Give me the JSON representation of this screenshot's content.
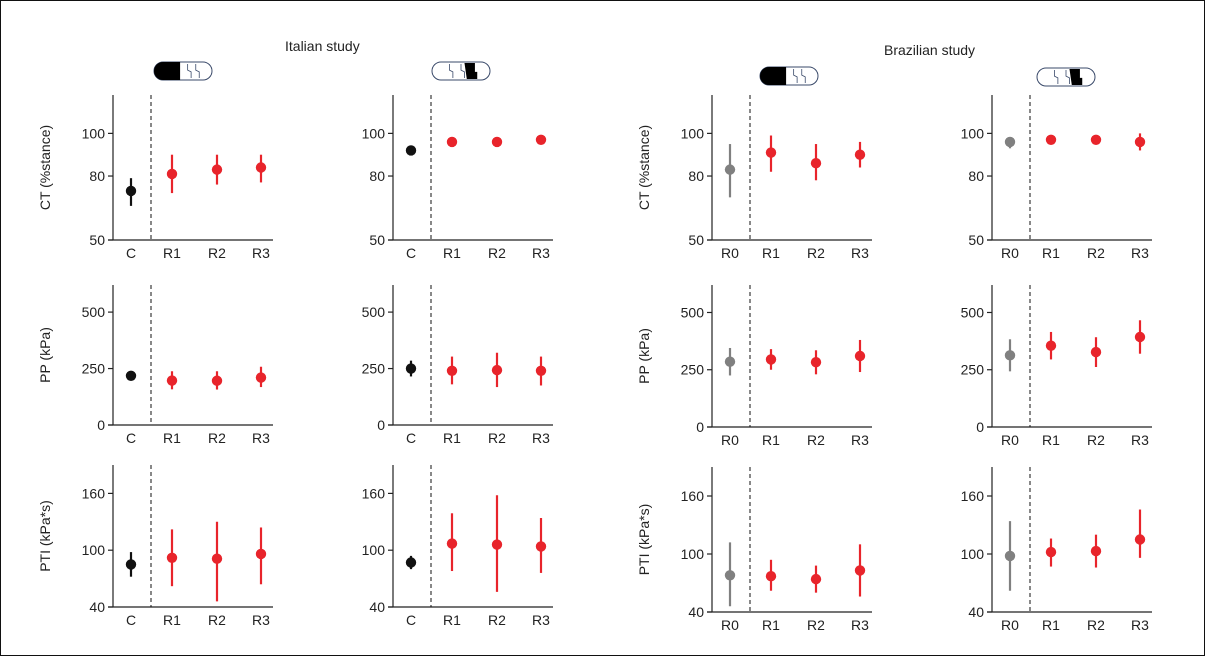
{
  "figure": {
    "studies": [
      {
        "title": "Italian study",
        "panels": [
          "ct_it_forefoot",
          "ct_it_heel",
          "pp_it_forefoot",
          "pp_it_heel",
          "pti_it_forefoot",
          "pti_it_heel"
        ]
      },
      {
        "title": "Brazilian study",
        "panels": [
          "ct_br_forefoot",
          "ct_br_heel",
          "pp_br_forefoot",
          "pp_br_heel",
          "pti_br_forefoot",
          "pti_br_heel"
        ]
      }
    ],
    "foot_icons": [
      "forefoot-region-icon",
      "heel-region-icon"
    ]
  },
  "colors": {
    "control": "#111111",
    "baseline": "#808080",
    "remission": "#e8242b",
    "axis": "#222222"
  },
  "chart_data": [
    {
      "id": "ct_it_forefoot",
      "type": "scatter",
      "error_bars": true,
      "study": "Italian study",
      "foot_region": "forefoot",
      "ylabel": "CT (%stance)",
      "yticks": [
        50,
        80,
        100
      ],
      "ylim": [
        50,
        118
      ],
      "categories": [
        "C",
        "R1",
        "R2",
        "R3"
      ],
      "values": [
        73,
        81,
        83,
        84
      ],
      "err_low": [
        66,
        72,
        76,
        77
      ],
      "err_high": [
        79,
        90,
        90,
        90
      ],
      "point_colors": [
        "control",
        "remission",
        "remission",
        "remission"
      ]
    },
    {
      "id": "ct_it_heel",
      "type": "scatter",
      "error_bars": true,
      "study": "Italian study",
      "foot_region": "heel",
      "ylabel": "",
      "yticks": [
        50,
        80,
        100
      ],
      "ylim": [
        50,
        118
      ],
      "categories": [
        "C",
        "R1",
        "R2",
        "R3"
      ],
      "values": [
        92,
        96,
        96,
        97
      ],
      "err_low": [
        90,
        95,
        95,
        96
      ],
      "err_high": [
        94,
        97,
        97,
        98
      ],
      "point_colors": [
        "control",
        "remission",
        "remission",
        "remission"
      ]
    },
    {
      "id": "pp_it_forefoot",
      "type": "scatter",
      "error_bars": true,
      "study": "Italian study",
      "foot_region": "forefoot",
      "ylabel": "PP (kPa)",
      "yticks": [
        0,
        250,
        500
      ],
      "ylim": [
        0,
        620
      ],
      "categories": [
        "C",
        "R1",
        "R2",
        "R3"
      ],
      "values": [
        218,
        197,
        196,
        210
      ],
      "err_low": [
        206,
        158,
        157,
        168
      ],
      "err_high": [
        230,
        238,
        238,
        258
      ],
      "point_colors": [
        "control",
        "remission",
        "remission",
        "remission"
      ]
    },
    {
      "id": "pp_it_heel",
      "type": "scatter",
      "error_bars": true,
      "study": "Italian study",
      "foot_region": "heel",
      "ylabel": "",
      "yticks": [
        0,
        250,
        500
      ],
      "ylim": [
        0,
        620
      ],
      "categories": [
        "C",
        "R1",
        "R2",
        "R3"
      ],
      "values": [
        250,
        240,
        243,
        240
      ],
      "err_low": [
        215,
        180,
        168,
        175
      ],
      "err_high": [
        285,
        303,
        320,
        303
      ],
      "point_colors": [
        "control",
        "remission",
        "remission",
        "remission"
      ]
    },
    {
      "id": "pti_it_forefoot",
      "type": "scatter",
      "error_bars": true,
      "study": "Italian study",
      "foot_region": "forefoot",
      "ylabel": "PTI (kPa*s)",
      "yticks": [
        40,
        100,
        160
      ],
      "ylim": [
        40,
        190
      ],
      "categories": [
        "C",
        "R1",
        "R2",
        "R3"
      ],
      "values": [
        85,
        92,
        91,
        96
      ],
      "err_low": [
        72,
        62,
        46,
        64
      ],
      "err_high": [
        98,
        122,
        130,
        124
      ],
      "point_colors": [
        "control",
        "remission",
        "remission",
        "remission"
      ]
    },
    {
      "id": "pti_it_heel",
      "type": "scatter",
      "error_bars": true,
      "study": "Italian study",
      "foot_region": "heel",
      "ylabel": "",
      "yticks": [
        40,
        100,
        160
      ],
      "ylim": [
        40,
        190
      ],
      "categories": [
        "C",
        "R1",
        "R2",
        "R3"
      ],
      "values": [
        87,
        107,
        106,
        104
      ],
      "err_low": [
        80,
        78,
        56,
        76
      ],
      "err_high": [
        94,
        139,
        158,
        134
      ],
      "point_colors": [
        "control",
        "remission",
        "remission",
        "remission"
      ]
    },
    {
      "id": "ct_br_forefoot",
      "type": "scatter",
      "error_bars": true,
      "study": "Brazilian study",
      "foot_region": "forefoot",
      "ylabel": "CT (%stance)",
      "yticks": [
        50,
        80,
        100
      ],
      "ylim": [
        50,
        118
      ],
      "categories": [
        "R0",
        "R1",
        "R2",
        "R3"
      ],
      "values": [
        83,
        91,
        86,
        90
      ],
      "err_low": [
        70,
        82,
        78,
        84
      ],
      "err_high": [
        95,
        99,
        95,
        96
      ],
      "point_colors": [
        "baseline",
        "remission",
        "remission",
        "remission"
      ]
    },
    {
      "id": "ct_br_heel",
      "type": "scatter",
      "error_bars": true,
      "study": "Brazilian study",
      "foot_region": "heel",
      "ylabel": "",
      "yticks": [
        50,
        80,
        100
      ],
      "ylim": [
        50,
        118
      ],
      "categories": [
        "R0",
        "R1",
        "R2",
        "R3"
      ],
      "values": [
        96,
        97,
        97,
        96
      ],
      "err_low": [
        93,
        95,
        95,
        92
      ],
      "err_high": [
        98,
        99,
        99,
        100
      ],
      "point_colors": [
        "baseline",
        "remission",
        "remission",
        "remission"
      ]
    },
    {
      "id": "pp_br_forefoot",
      "type": "scatter",
      "error_bars": true,
      "study": "Brazilian study",
      "foot_region": "forefoot",
      "ylabel": "PP (kPa)",
      "yticks": [
        0,
        250,
        500
      ],
      "ylim": [
        0,
        620
      ],
      "categories": [
        "R0",
        "R1",
        "R2",
        "R3"
      ],
      "values": [
        285,
        295,
        283,
        310
      ],
      "err_low": [
        225,
        250,
        230,
        240
      ],
      "err_high": [
        345,
        340,
        335,
        380
      ],
      "point_colors": [
        "baseline",
        "remission",
        "remission",
        "remission"
      ]
    },
    {
      "id": "pp_br_heel",
      "type": "scatter",
      "error_bars": true,
      "study": "Brazilian study",
      "foot_region": "heel",
      "ylabel": "",
      "yticks": [
        0,
        250,
        500
      ],
      "ylim": [
        0,
        620
      ],
      "categories": [
        "R0",
        "R1",
        "R2",
        "R3"
      ],
      "values": [
        313,
        355,
        327,
        393
      ],
      "err_low": [
        243,
        295,
        262,
        320
      ],
      "err_high": [
        383,
        415,
        392,
        466
      ],
      "point_colors": [
        "baseline",
        "remission",
        "remission",
        "remission"
      ]
    },
    {
      "id": "pti_br_forefoot",
      "type": "scatter",
      "error_bars": true,
      "study": "Brazilian study",
      "foot_region": "forefoot",
      "ylabel": "PTI (kPa*s)",
      "yticks": [
        40,
        100,
        160
      ],
      "ylim": [
        40,
        190
      ],
      "categories": [
        "R0",
        "R1",
        "R2",
        "R3"
      ],
      "values": [
        78,
        77,
        74,
        83
      ],
      "err_low": [
        46,
        62,
        60,
        56
      ],
      "err_high": [
        112,
        94,
        88,
        110
      ],
      "point_colors": [
        "baseline",
        "remission",
        "remission",
        "remission"
      ]
    },
    {
      "id": "pti_br_heel",
      "type": "scatter",
      "error_bars": true,
      "study": "Brazilian study",
      "foot_region": "heel",
      "ylabel": "",
      "yticks": [
        40,
        100,
        160
      ],
      "ylim": [
        40,
        190
      ],
      "categories": [
        "R0",
        "R1",
        "R2",
        "R3"
      ],
      "values": [
        98,
        102,
        103,
        115
      ],
      "err_low": [
        62,
        87,
        86,
        96
      ],
      "err_high": [
        134,
        116,
        120,
        146
      ],
      "point_colors": [
        "baseline",
        "remission",
        "remission",
        "remission"
      ]
    }
  ]
}
